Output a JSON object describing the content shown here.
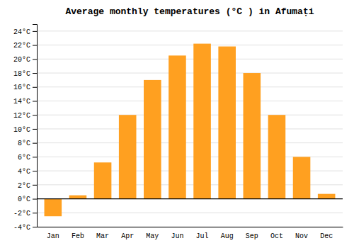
{
  "chart_data": {
    "type": "bar",
    "title": "Average monthly temperatures (°C ) in Afumați",
    "categories": [
      "Jan",
      "Feb",
      "Mar",
      "Apr",
      "May",
      "Jun",
      "Jul",
      "Aug",
      "Sep",
      "Oct",
      "Nov",
      "Dec"
    ],
    "values": [
      -2.5,
      0.5,
      5.2,
      12.0,
      17.0,
      20.5,
      22.2,
      21.8,
      18.0,
      12.0,
      6.0,
      0.7
    ],
    "color": "#FFA020",
    "ylim": [
      -4,
      25
    ],
    "yticks": [
      {
        "value": -4,
        "label": "-4°C"
      },
      {
        "value": -2,
        "label": "-2°C"
      },
      {
        "value": 0,
        "label": "0°C"
      },
      {
        "value": 2,
        "label": "2°C"
      },
      {
        "value": 4,
        "label": "4°C"
      },
      {
        "value": 6,
        "label": "6°C"
      },
      {
        "value": 8,
        "label": "8°C"
      },
      {
        "value": 10,
        "label": "10°C"
      },
      {
        "value": 12,
        "label": "12°C"
      },
      {
        "value": 14,
        "label": "14°C"
      },
      {
        "value": 16,
        "label": "16°C"
      },
      {
        "value": 18,
        "label": "18°C"
      },
      {
        "value": 20,
        "label": "20°C"
      },
      {
        "value": 22,
        "label": "22°C"
      },
      {
        "value": 24,
        "label": "24°C"
      }
    ],
    "grid": true
  }
}
